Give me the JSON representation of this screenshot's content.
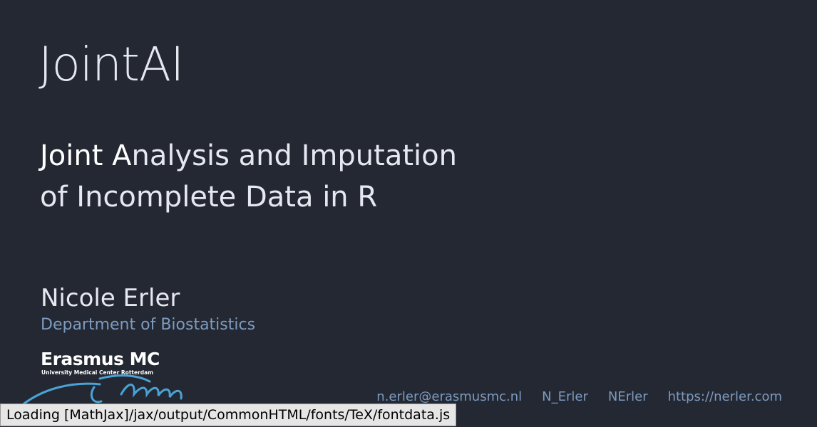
{
  "slide": {
    "title": "JointAI",
    "subtitle_line1_prefix": "Joint A",
    "subtitle_line1_rest": "nalysis and Imputation",
    "subtitle_line2": "of Incomplete Data in R",
    "author": "Nicole Erler",
    "department": "Department of Biostatistics"
  },
  "logo": {
    "name": "Erasmus MC",
    "tagline": "University Medical Center Rotterdam"
  },
  "contacts": {
    "email": "n.erler@erasmusmc.nl",
    "twitter": "N_Erler",
    "github": "NErler",
    "website": "https://nerler.com"
  },
  "status": {
    "message": "Loading [MathJax]/jax/output/CommonHTML/fonts/TeX/fontdata.js"
  },
  "colors": {
    "background": "#242833",
    "text": "#e6e8f0",
    "accent_blue": "#7d9bbf",
    "logo_swoosh": "#4aa3d6"
  }
}
